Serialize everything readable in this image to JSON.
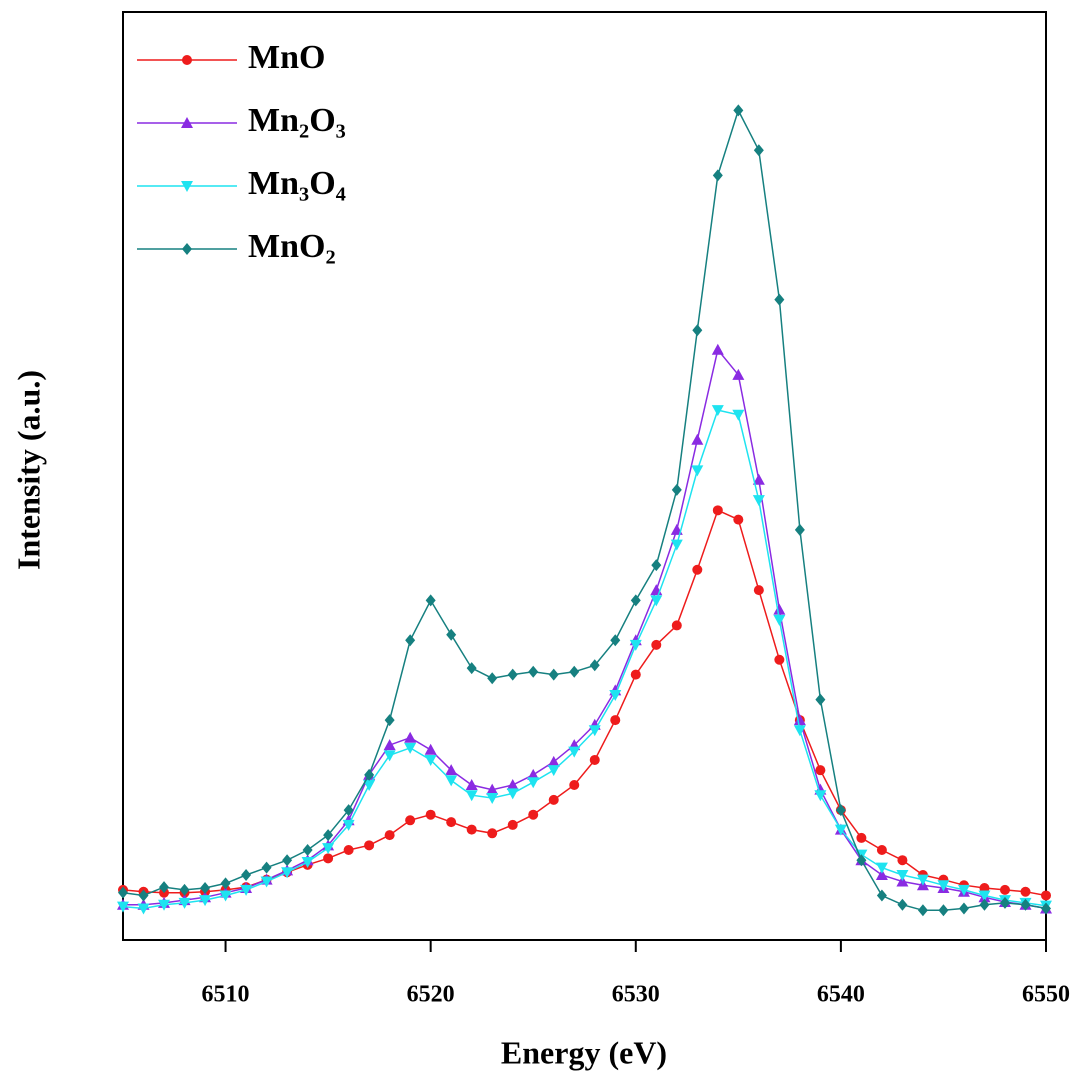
{
  "chart_data": {
    "type": "line",
    "xlabel": "Energy (eV)",
    "ylabel": "Intensity (a.u.)",
    "xlim": [
      6505,
      6550
    ],
    "xticks": [
      6510,
      6520,
      6530,
      6540,
      6550
    ],
    "ylim": [
      0,
      1
    ],
    "legend": "upper left",
    "x": [
      6505,
      6506,
      6507,
      6508,
      6509,
      6510,
      6511,
      6512,
      6513,
      6514,
      6515,
      6516,
      6517,
      6518,
      6519,
      6520,
      6521,
      6522,
      6523,
      6524,
      6525,
      6526,
      6527,
      6528,
      6529,
      6530,
      6531,
      6532,
      6533,
      6534,
      6535,
      6536,
      6537,
      6538,
      6539,
      6540,
      6541,
      6542,
      6543,
      6544,
      6545,
      6546,
      6547,
      6548,
      6549,
      6550
    ],
    "series": [
      {
        "name": "MnO",
        "color": "#ee1c1c",
        "marker": "circle",
        "values": [
          0.054,
          0.052,
          0.051,
          0.051,
          0.052,
          0.054,
          0.057,
          0.065,
          0.073,
          0.081,
          0.088,
          0.097,
          0.102,
          0.113,
          0.129,
          0.135,
          0.127,
          0.119,
          0.115,
          0.124,
          0.135,
          0.151,
          0.167,
          0.194,
          0.237,
          0.286,
          0.318,
          0.339,
          0.399,
          0.463,
          0.453,
          0.377,
          0.302,
          0.237,
          0.183,
          0.14,
          0.11,
          0.097,
          0.086,
          0.07,
          0.065,
          0.059,
          0.056,
          0.054,
          0.052,
          0.048
        ]
      },
      {
        "name": "Mn₂O₃",
        "color": "#8a2be2",
        "marker": "triangle-up",
        "values": [
          0.038,
          0.038,
          0.04,
          0.043,
          0.046,
          0.051,
          0.056,
          0.065,
          0.075,
          0.086,
          0.102,
          0.129,
          0.178,
          0.21,
          0.218,
          0.205,
          0.183,
          0.167,
          0.162,
          0.167,
          0.178,
          0.192,
          0.21,
          0.232,
          0.269,
          0.323,
          0.377,
          0.442,
          0.539,
          0.636,
          0.609,
          0.496,
          0.356,
          0.237,
          0.162,
          0.119,
          0.086,
          0.07,
          0.063,
          0.059,
          0.056,
          0.052,
          0.046,
          0.041,
          0.038,
          0.034
        ]
      },
      {
        "name": "Mn₃O₄",
        "color": "#1ee3f0",
        "marker": "triangle-down",
        "values": [
          0.036,
          0.034,
          0.038,
          0.04,
          0.043,
          0.048,
          0.054,
          0.063,
          0.073,
          0.084,
          0.099,
          0.124,
          0.167,
          0.199,
          0.207,
          0.194,
          0.172,
          0.156,
          0.153,
          0.158,
          0.17,
          0.183,
          0.203,
          0.226,
          0.264,
          0.318,
          0.366,
          0.426,
          0.506,
          0.571,
          0.566,
          0.474,
          0.345,
          0.226,
          0.156,
          0.119,
          0.092,
          0.078,
          0.07,
          0.065,
          0.059,
          0.054,
          0.048,
          0.043,
          0.04,
          0.037
        ]
      },
      {
        "name": "MnO₂",
        "color": "#168080",
        "marker": "diamond",
        "values": [
          0.051,
          0.048,
          0.057,
          0.054,
          0.056,
          0.061,
          0.07,
          0.078,
          0.086,
          0.097,
          0.113,
          0.14,
          0.178,
          0.237,
          0.323,
          0.366,
          0.329,
          0.293,
          0.282,
          0.286,
          0.289,
          0.286,
          0.289,
          0.296,
          0.323,
          0.366,
          0.404,
          0.485,
          0.657,
          0.824,
          0.894,
          0.851,
          0.69,
          0.442,
          0.259,
          0.14,
          0.086,
          0.048,
          0.038,
          0.032,
          0.032,
          0.034,
          0.038,
          0.04,
          0.038,
          0.034
        ]
      }
    ]
  }
}
